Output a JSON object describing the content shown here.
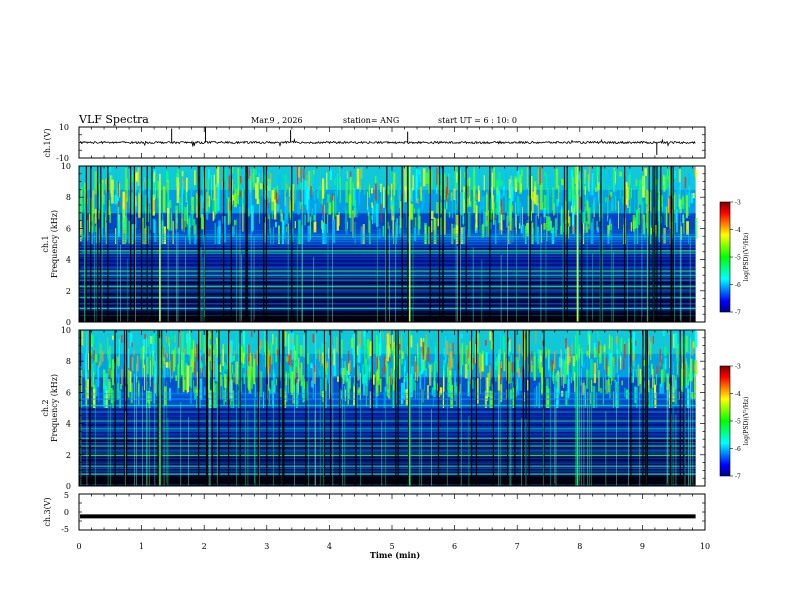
{
  "header": {
    "title": "VLF Spectra",
    "date": "Mar.9 , 2026",
    "station": "station= ANG",
    "start_ut": "start UT = 6 : 10: 0"
  },
  "colorbar": {
    "label": "log(PSD)(V²/Hz)",
    "ticks": [
      "-3",
      "-4",
      "-5",
      "-6",
      "-7"
    ],
    "colors": [
      "#800000",
      "#ff0000",
      "#ff8000",
      "#ffff00",
      "#80ff00",
      "#00ff00",
      "#00ff80",
      "#00ffff",
      "#0080ff",
      "#0000ff",
      "#00008b"
    ]
  },
  "chart_data": [
    {
      "type": "line",
      "name": "ch1-waveform",
      "ylabel": "ch.1(V)",
      "ylim": [
        -10,
        10
      ],
      "ytick_labels": [
        "10",
        "-10"
      ],
      "baseline": 0
    },
    {
      "type": "heatmap",
      "name": "ch1-spectrogram",
      "ylabel": "ch.1\nFrequency (kHz)",
      "ylabel_line1": "ch.1",
      "ylabel_line2": "Frequency (kHz)",
      "ylim": [
        0,
        10
      ],
      "ytick_labels": [
        "10",
        "8",
        "6",
        "4",
        "2",
        "0"
      ],
      "xlim": [
        0,
        10
      ],
      "data_xmax": 9.85,
      "zlim": [
        -7,
        -3
      ],
      "zlabel": "log(PSD)(V²/Hz)"
    },
    {
      "type": "heatmap",
      "name": "ch2-spectrogram",
      "ylabel": "ch.2\nFrequency (kHz)",
      "ylabel_line1": "ch.2",
      "ylabel_line2": "Frequency (kHz)",
      "ylim": [
        0,
        10
      ],
      "ytick_labels": [
        "10",
        "8",
        "6",
        "4",
        "2",
        "0"
      ],
      "xlim": [
        0,
        10
      ],
      "data_xmax": 9.85,
      "zlim": [
        -7,
        -3
      ],
      "zlabel": "log(PSD)(V²/Hz)"
    },
    {
      "type": "line",
      "name": "ch3-waveform",
      "ylabel": "ch.3(V)",
      "ylim": [
        -5,
        5
      ],
      "ytick_labels": [
        "5",
        "0",
        "-5"
      ],
      "baseline": -1.2
    }
  ],
  "xaxis": {
    "label": "Time (min)",
    "ticks": [
      "0",
      "1",
      "2",
      "3",
      "4",
      "5",
      "6",
      "7",
      "8",
      "9",
      "10"
    ],
    "xlim": [
      0,
      10
    ]
  }
}
